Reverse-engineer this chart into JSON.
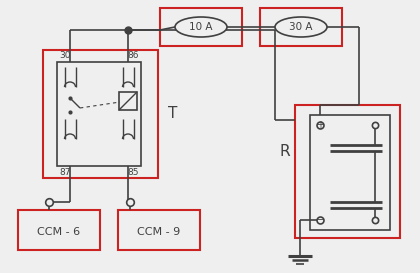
{
  "bg_color": "#efefef",
  "line_color": "#606060",
  "dark_color": "#404040",
  "red_box_color": "#cc2222",
  "fuse_label_10": "10 A",
  "fuse_label_30": "30 A",
  "relay_label": "T",
  "resistor_label": "R",
  "ccm6_label": "CCM - 6",
  "ccm9_label": "CCM - 9",
  "pin_30": "30",
  "pin_86": "86",
  "pin_87": "87",
  "pin_85": "85",
  "figsize": [
    4.2,
    2.73
  ],
  "dpi": 100,
  "xlim": [
    0,
    420
  ],
  "ylim": [
    0,
    273
  ]
}
